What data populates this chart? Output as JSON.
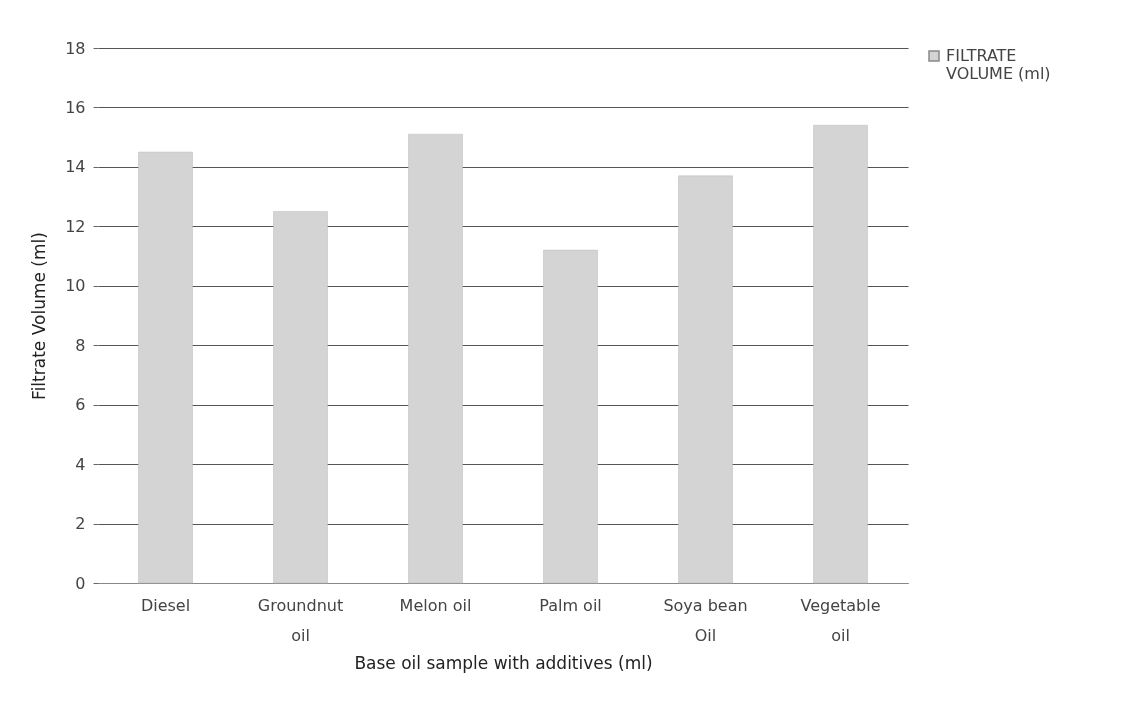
{
  "chart_data": {
    "type": "bar",
    "xlabel": "Base oil sample with additives (ml)",
    "ylabel": "Filtrate Volume (ml)",
    "categories": [
      "Diesel",
      "Groundnut oil",
      "Melon oil",
      "Palm oil",
      "Soya bean Oil",
      "Vegetable oil"
    ],
    "series": [
      {
        "name": "FILTRATE VOLUME (ml)",
        "color": "#d4d4d4",
        "values": [
          14.5,
          12.5,
          15.1,
          11.2,
          13.7,
          15.4
        ]
      }
    ],
    "ylim": [
      0,
      18
    ],
    "yticks": [
      0,
      2,
      4,
      6,
      8,
      10,
      12,
      14,
      16,
      18
    ],
    "grid": "y",
    "legend": "right"
  }
}
